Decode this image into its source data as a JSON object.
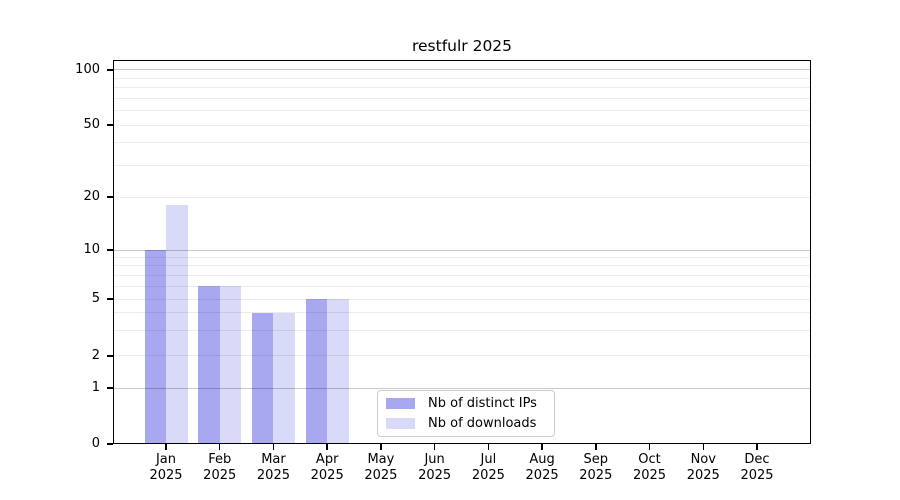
{
  "title": "restfulr 2025",
  "chart_data": {
    "type": "bar",
    "title": "restfulr 2025",
    "x": {
      "categories": [
        "Jan",
        "Feb",
        "Mar",
        "Apr",
        "May",
        "Jun",
        "Jul",
        "Aug",
        "Sep",
        "Oct",
        "Nov",
        "Dec"
      ],
      "year_label": "2025"
    },
    "y": {
      "major_ticks": [
        0,
        1,
        2,
        5,
        10,
        20,
        50,
        100
      ],
      "minor_gridlines": [
        3,
        4,
        6,
        7,
        8,
        9,
        30,
        40,
        60,
        70,
        80,
        90
      ],
      "emphasized_gridlines": [
        1,
        10,
        100
      ],
      "scale": "log-like above 1 with compressed zero region",
      "ylim": [
        0,
        115
      ],
      "anchor_fractions": {
        "0": 0,
        "1": 0.1458,
        "2": 0.2292,
        "5": 0.3776,
        "10": 0.5052,
        "20": 0.6432,
        "50": 0.8307,
        "100": 0.974
      }
    },
    "series": [
      {
        "name": "Nb of distinct IPs",
        "color": "#a8a8f0",
        "values": [
          10,
          6,
          4,
          5,
          0,
          0,
          0,
          0,
          0,
          0,
          0,
          0
        ]
      },
      {
        "name": "Nb of downloads",
        "color": "#d9d9f8",
        "values": [
          18,
          6,
          4,
          5,
          0,
          0,
          0,
          0,
          0,
          0,
          0,
          0
        ]
      }
    ],
    "legend": {
      "position": "inside-bottom-center",
      "entries": [
        "Nb of distinct IPs",
        "Nb of downloads"
      ]
    },
    "grid": "on",
    "colors": {
      "grid_minor": "#ececec",
      "grid_major": "#c9c9c9",
      "axis_frame": "#000000",
      "background": "#ffffff"
    }
  }
}
